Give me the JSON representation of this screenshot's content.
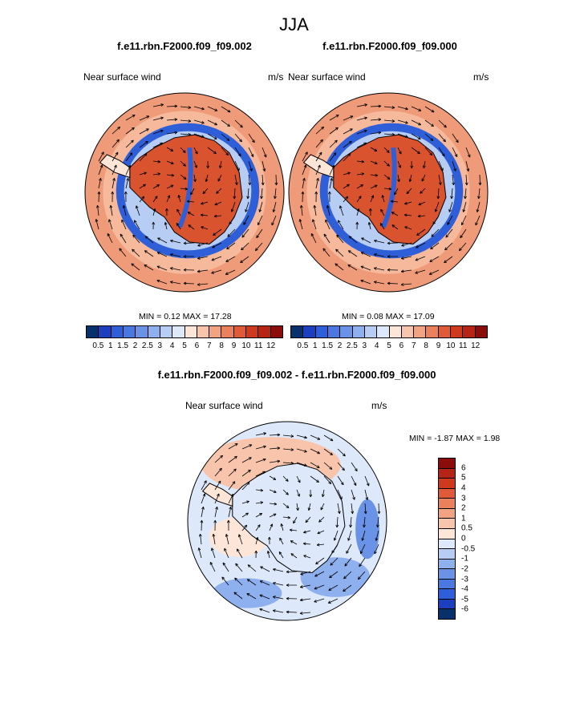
{
  "season_title": "JJA",
  "panels": [
    {
      "title": "f.e11.rbn.F2000.f09_f09.002",
      "left_label": "Near surface wind",
      "right_label": "m/s",
      "min_label": "MIN =",
      "min_value": "0.12",
      "max_label": "MAX =",
      "max_value": "17.28"
    },
    {
      "title": "f.e11.rbn.F2000.f09_f09.000",
      "left_label": "Near surface wind",
      "right_label": "m/s",
      "min_label": "MIN =",
      "min_value": "0.08",
      "max_label": "MAX =",
      "max_value": "17.09"
    },
    {
      "title": "f.e11.rbn.F2000.f09_f09.002 - f.e11.rbn.F2000.f09_f09.000",
      "left_label": "Near surface wind",
      "right_label": "m/s",
      "min_label": "MIN =",
      "min_value": "-1.87",
      "max_label": "MAX =",
      "max_value": "1.98"
    }
  ],
  "colorbar_abs": {
    "labels": [
      "0.5",
      "1",
      "1.5",
      "2",
      "2.5",
      "3",
      "4",
      "5",
      "6",
      "7",
      "8",
      "9",
      "10",
      "11",
      "12"
    ],
    "colors": [
      "#08306b",
      "#1c3fbf",
      "#2f5fd8",
      "#4a78e0",
      "#6a93e8",
      "#8fb0ee",
      "#b7cdf3",
      "#dde9fa",
      "#fde6d8",
      "#f8c5ac",
      "#f2a381",
      "#eb805c",
      "#e05a39",
      "#cf3a1f",
      "#b52414",
      "#8c0c0c"
    ]
  },
  "colorbar_diff": {
    "labels": [
      "6",
      "5",
      "4",
      "3",
      "2",
      "1",
      "0.5",
      "0",
      "-0.5",
      "-1",
      "-2",
      "-3",
      "-4",
      "-5",
      "-6"
    ],
    "colors": [
      "#8c0c0c",
      "#b52414",
      "#cf3a1f",
      "#e05a39",
      "#eb805c",
      "#f2a381",
      "#f8c5ac",
      "#fde6d8",
      "#dde9fa",
      "#b7cdf3",
      "#8fb0ee",
      "#6a93e8",
      "#4a78e0",
      "#2f5fd8",
      "#1c3fbf",
      "#08306b"
    ]
  }
}
